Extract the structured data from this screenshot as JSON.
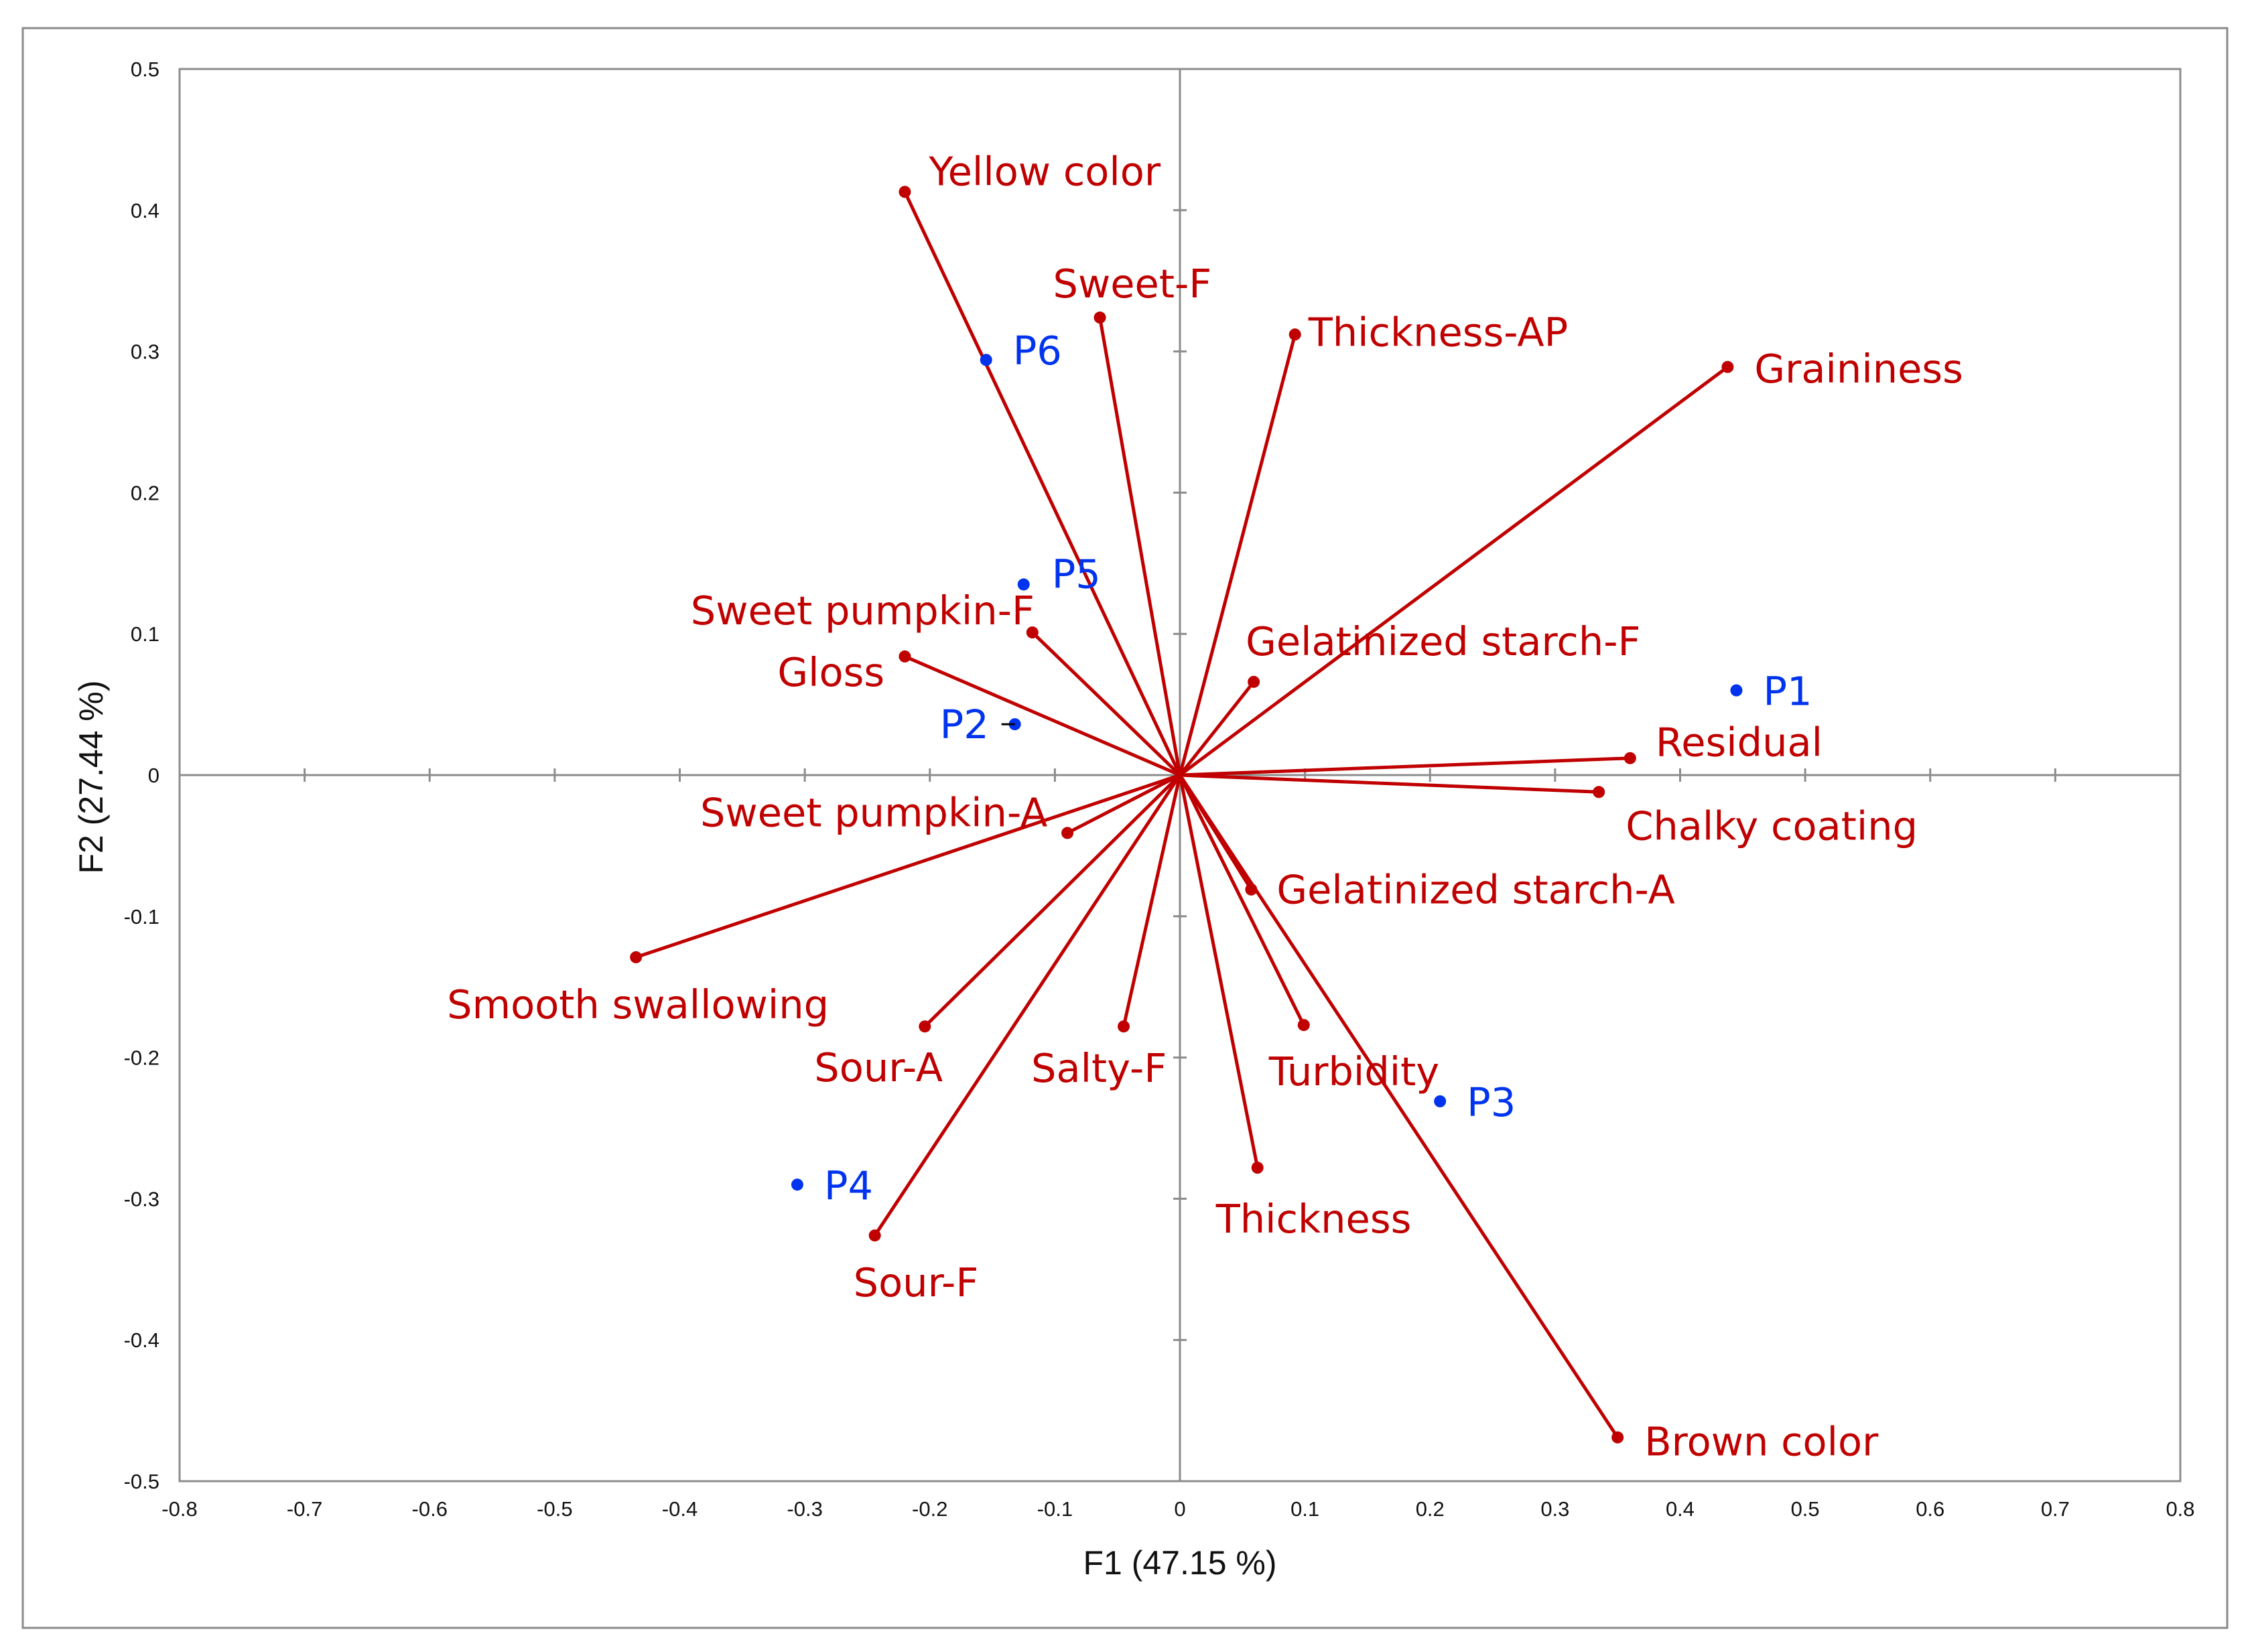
{
  "chart_data": {
    "type": "scatter",
    "subtype": "pca-biplot",
    "title": "",
    "xlabel": "F1 (47.15 %)",
    "ylabel": "F2 (27.44 %)",
    "xlim": [
      -0.8,
      0.8
    ],
    "ylim": [
      -0.5,
      0.5
    ],
    "x_ticks": [
      -0.8,
      -0.7,
      -0.6,
      -0.5,
      -0.4,
      -0.3,
      -0.2,
      -0.1,
      0,
      0.1,
      0.2,
      0.3,
      0.4,
      0.5,
      0.6,
      0.7,
      0.8
    ],
    "y_ticks": [
      -0.5,
      -0.4,
      -0.3,
      -0.2,
      -0.1,
      0,
      0.1,
      0.2,
      0.3,
      0.4,
      0.5
    ],
    "grid": false,
    "colors": {
      "variables": "#c00000",
      "observations": "#0033ee",
      "axes": "#8c8c8c",
      "text": "#111111"
    },
    "variables": [
      {
        "name": "Yellow color",
        "x": -0.22,
        "y": 0.413
      },
      {
        "name": "Sweet-F",
        "x": -0.064,
        "y": 0.324
      },
      {
        "name": "Thickness-AP",
        "x": 0.092,
        "y": 0.312
      },
      {
        "name": "Graininess",
        "x": 0.438,
        "y": 0.289
      },
      {
        "name": "Sweet pumpkin-F",
        "x": -0.118,
        "y": 0.101
      },
      {
        "name": "Gloss",
        "x": -0.22,
        "y": 0.084
      },
      {
        "name": "Gelatinized starch-F",
        "x": 0.059,
        "y": 0.066
      },
      {
        "name": "Residual",
        "x": 0.36,
        "y": 0.012
      },
      {
        "name": "Chalky coating",
        "x": 0.335,
        "y": -0.012
      },
      {
        "name": "Sweet pumpkin-A",
        "x": -0.09,
        "y": -0.041
      },
      {
        "name": "Gelatinized starch-A",
        "x": 0.057,
        "y": -0.081
      },
      {
        "name": "Smooth swallowing",
        "x": -0.435,
        "y": -0.129
      },
      {
        "name": "Sour-A",
        "x": -0.204,
        "y": -0.178
      },
      {
        "name": "Salty-F",
        "x": -0.045,
        "y": -0.178
      },
      {
        "name": "Turbidity",
        "x": 0.099,
        "y": -0.177
      },
      {
        "name": "Thickness",
        "x": 0.062,
        "y": -0.278
      },
      {
        "name": "Sour-F",
        "x": -0.244,
        "y": -0.326
      },
      {
        "name": "Brown color",
        "x": 0.35,
        "y": -0.469
      }
    ],
    "observations": [
      {
        "name": "P1",
        "x": 0.445,
        "y": 0.06
      },
      {
        "name": "P2",
        "x": -0.132,
        "y": 0.036
      },
      {
        "name": "P3",
        "x": 0.208,
        "y": -0.231
      },
      {
        "name": "P4",
        "x": -0.306,
        "y": -0.29
      },
      {
        "name": "P5",
        "x": -0.125,
        "y": 0.135
      },
      {
        "name": "P6",
        "x": -0.155,
        "y": 0.294
      }
    ]
  }
}
